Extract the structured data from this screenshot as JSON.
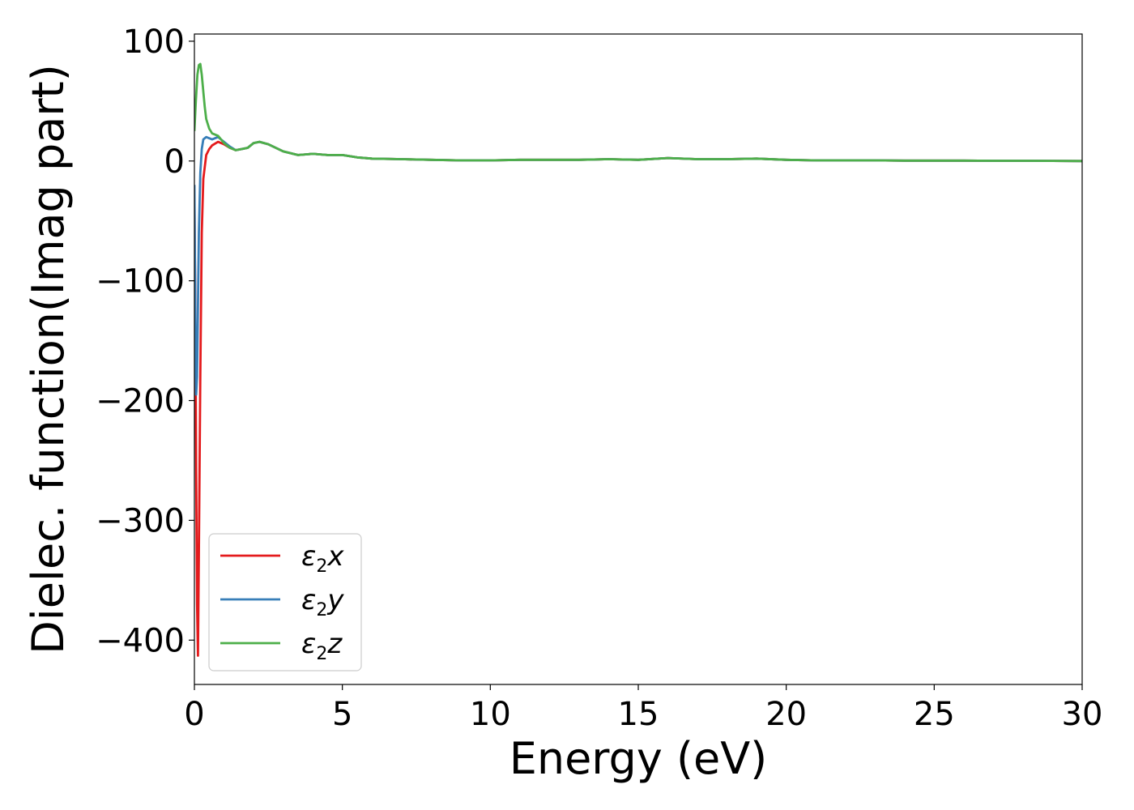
{
  "chart_data": {
    "type": "line",
    "title": "",
    "xlabel": "Energy (eV)",
    "ylabel": "Dielec. function(Imag part)",
    "xlim": [
      0,
      30
    ],
    "ylim": [
      -437,
      106
    ],
    "xticks": [
      0,
      5,
      10,
      15,
      20,
      25,
      30
    ],
    "yticks": [
      -400,
      -300,
      -200,
      -100,
      0,
      100
    ],
    "xtick_labels": [
      "0",
      "5",
      "10",
      "15",
      "20",
      "25",
      "30"
    ],
    "ytick_labels": [
      "−400",
      "−300",
      "−200",
      "−100",
      "0",
      "100"
    ],
    "grid": false,
    "legend_position": "lower-left",
    "series": [
      {
        "name": "ε₂x",
        "symbol": "ε",
        "subscript": "2",
        "suffix": "x",
        "color": "#e41a1c",
        "x": [
          0,
          0.03,
          0.06,
          0.09,
          0.12,
          0.15,
          0.2,
          0.25,
          0.3,
          0.4,
          0.5,
          0.6,
          0.8,
          1.0,
          1.2,
          1.4,
          1.6,
          1.8,
          2.0,
          2.2,
          2.5,
          3.0,
          3.5,
          4.0,
          4.5,
          5.0,
          5.5,
          6,
          7,
          8,
          9,
          10,
          11,
          12,
          13,
          14,
          15,
          16,
          17,
          18,
          19,
          20,
          21,
          22,
          23,
          24,
          25,
          26,
          27,
          28,
          29,
          30
        ],
        "y": [
          -30,
          -120,
          -260,
          -370,
          -413,
          -330,
          -180,
          -60,
          -15,
          5,
          10,
          13,
          16,
          14,
          11,
          9,
          10,
          11,
          15,
          16,
          14,
          8,
          5,
          6,
          5,
          5,
          3,
          2,
          1.5,
          1,
          0.5,
          0.5,
          1,
          1,
          1,
          1.5,
          1,
          2.5,
          1.5,
          1.5,
          2,
          1,
          0.5,
          0.5,
          0.5,
          0.3,
          0.3,
          0.3,
          0.2,
          0.2,
          0.1,
          0
        ]
      },
      {
        "name": "ε₂y",
        "symbol": "ε",
        "subscript": "2",
        "suffix": "y",
        "color": "#377eb8",
        "x": [
          0,
          0.03,
          0.06,
          0.09,
          0.12,
          0.15,
          0.2,
          0.25,
          0.3,
          0.4,
          0.5,
          0.6,
          0.8,
          1.0,
          1.2,
          1.4,
          1.6,
          1.8,
          2.0,
          2.2,
          2.5,
          3.0,
          3.5,
          4.0,
          4.5,
          5.0,
          5.5,
          6,
          7,
          8,
          9,
          10,
          11,
          12,
          13,
          14,
          15,
          16,
          17,
          18,
          19,
          20,
          21,
          22,
          23,
          24,
          25,
          26,
          27,
          28,
          29,
          30
        ],
        "y": [
          -20,
          -130,
          -195,
          -180,
          -120,
          -60,
          -10,
          10,
          18,
          20,
          19,
          18,
          20,
          16,
          12,
          9,
          10,
          11,
          15,
          16,
          14,
          8,
          5,
          6,
          5,
          5,
          3,
          2,
          1.5,
          1,
          0.5,
          0.5,
          1,
          1,
          1,
          1.5,
          1,
          2.5,
          1.5,
          1.5,
          2,
          1,
          0.5,
          0.5,
          0.5,
          0.3,
          0.3,
          0.3,
          0.2,
          0.2,
          0.1,
          0
        ]
      },
      {
        "name": "ε₂z",
        "symbol": "ε",
        "subscript": "2",
        "suffix": "z",
        "color": "#4daf4a",
        "x": [
          0,
          0.05,
          0.1,
          0.15,
          0.2,
          0.25,
          0.3,
          0.35,
          0.4,
          0.5,
          0.6,
          0.7,
          0.8,
          0.9,
          1.0,
          1.2,
          1.4,
          1.6,
          1.8,
          2.0,
          2.2,
          2.5,
          3.0,
          3.5,
          4.0,
          4.5,
          5.0,
          5.5,
          6,
          7,
          8,
          9,
          10,
          11,
          12,
          13,
          14,
          15,
          16,
          17,
          18,
          19,
          20,
          21,
          22,
          23,
          24,
          25,
          26,
          27,
          28,
          29,
          30
        ],
        "y": [
          25,
          50,
          72,
          80,
          81,
          72,
          58,
          45,
          35,
          27,
          23,
          22,
          21,
          18,
          15,
          11,
          9,
          10,
          11,
          15,
          16,
          14,
          8,
          5,
          6,
          5,
          5,
          3,
          2,
          1.5,
          1,
          0.5,
          0.5,
          1,
          1,
          1,
          1.5,
          1,
          2.5,
          1.5,
          1.5,
          2,
          1,
          0.5,
          0.5,
          0.5,
          0.3,
          0.3,
          0.3,
          0.2,
          0.2,
          0.1,
          0
        ]
      }
    ]
  }
}
